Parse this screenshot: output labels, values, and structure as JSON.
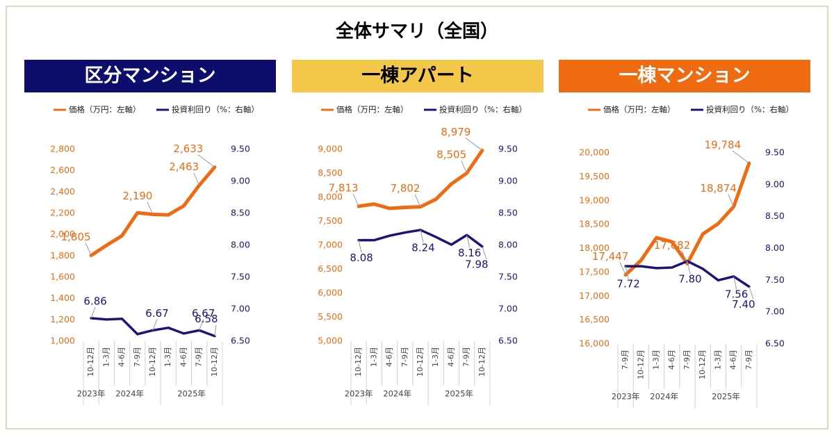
{
  "title": "全体サマリ（全国）",
  "chart_data": [
    {
      "type": "line",
      "title": "区分マンション",
      "title_bg": "#0d0d6b",
      "title_color": "#ffffff",
      "categories": [
        "10-12月",
        "1-3月",
        "4-6月",
        "7-9月",
        "10-12月",
        "1-3月",
        "4-6月",
        "7-9月",
        "10-12月"
      ],
      "year_labels": [
        "2023年",
        "2024年",
        null,
        null,
        null,
        "2025年",
        null,
        null,
        null
      ],
      "ylim": [
        1000,
        2800
      ],
      "yticks": [
        {
          "value": 1000,
          "label": "1,000"
        },
        {
          "value": 1200,
          "label": "1,200"
        },
        {
          "value": 1400,
          "label": "1,400"
        },
        {
          "value": 1600,
          "label": "1,600"
        },
        {
          "value": 1800,
          "label": "1,800"
        },
        {
          "value": 2000,
          "label": "2,000"
        },
        {
          "value": 2200,
          "label": "2,200"
        },
        {
          "value": 2400,
          "label": "2,400"
        },
        {
          "value": 2600,
          "label": "2,600"
        },
        {
          "value": 2800,
          "label": "2,800"
        }
      ],
      "y2lim": [
        6.5,
        9.5
      ],
      "y2ticks": [
        {
          "value": 6.5,
          "label": "6.50"
        },
        {
          "value": 7,
          "label": "7.00"
        },
        {
          "value": 7.5,
          "label": "7.50"
        },
        {
          "value": 8,
          "label": "8.00"
        },
        {
          "value": 8.5,
          "label": "8.50"
        },
        {
          "value": 9,
          "label": "9.00"
        },
        {
          "value": 9.5,
          "label": "9.50"
        }
      ],
      "series": [
        {
          "name": "価格（万円：左軸）",
          "color": "#ee6b12",
          "values": [
            1805,
            1900,
            1990,
            2205,
            2190,
            2185,
            2270,
            2463,
            2633
          ],
          "value_labels": [
            "1,805",
            null,
            null,
            null,
            "2,190",
            null,
            null,
            "2,463",
            "2,633"
          ]
        },
        {
          "name": "投資利回り（%：右軸）",
          "color": "#1c1478",
          "axis": "y2",
          "values": [
            6.86,
            6.84,
            6.85,
            6.61,
            6.67,
            6.71,
            6.62,
            6.67,
            6.58
          ],
          "value_labels": [
            "6.86",
            null,
            null,
            null,
            "6.67",
            null,
            null,
            "6.67",
            "6.58"
          ]
        }
      ]
    },
    {
      "type": "line",
      "title": "一棟アパート",
      "title_bg": "#f4c84a",
      "title_color": "#000000",
      "categories": [
        "10-12月",
        "1-3月",
        "4-6月",
        "7-9月",
        "10-12月",
        "1-3月",
        "4-6月",
        "7-9月",
        "10-12月"
      ],
      "year_labels": [
        "2023年",
        "2024年",
        null,
        null,
        null,
        "2025年",
        null,
        null,
        null
      ],
      "ylim": [
        5000,
        9000
      ],
      "yticks": [
        {
          "value": 5000,
          "label": "5,000"
        },
        {
          "value": 5500,
          "label": "5,500"
        },
        {
          "value": 6000,
          "label": "6,000"
        },
        {
          "value": 6500,
          "label": "6,500"
        },
        {
          "value": 7000,
          "label": "7,000"
        },
        {
          "value": 7500,
          "label": "7,500"
        },
        {
          "value": 8000,
          "label": "8,000"
        },
        {
          "value": 8500,
          "label": "8,500"
        },
        {
          "value": 9000,
          "label": "9,000"
        }
      ],
      "y2lim": [
        6.5,
        9.5
      ],
      "y2ticks": [
        {
          "value": 6.5,
          "label": "6.50"
        },
        {
          "value": 7,
          "label": "7.00"
        },
        {
          "value": 7.5,
          "label": "7.50"
        },
        {
          "value": 8,
          "label": "8.00"
        },
        {
          "value": 8.5,
          "label": "8.50"
        },
        {
          "value": 9,
          "label": "9.00"
        },
        {
          "value": 9.5,
          "label": "9.50"
        }
      ],
      "series": [
        {
          "name": "価格（万円：左軸）",
          "color": "#ee6b12",
          "values": [
            7813,
            7860,
            7770,
            7790,
            7802,
            7960,
            8280,
            8505,
            8979
          ],
          "value_labels": [
            "7,813",
            null,
            null,
            null,
            "7,802",
            null,
            null,
            "8,505",
            "8,979"
          ]
        },
        {
          "name": "投資利回り（%：右軸）",
          "color": "#1c1478",
          "axis": "y2",
          "values": [
            8.08,
            8.08,
            8.15,
            8.2,
            8.24,
            8.13,
            8.01,
            8.16,
            7.98
          ],
          "value_labels": [
            "8.08",
            null,
            null,
            null,
            "8.24",
            null,
            null,
            "8.16",
            "7.98"
          ]
        }
      ]
    },
    {
      "type": "line",
      "title": "一棟マンション",
      "title_bg": "#ee6b12",
      "title_color": "#ffffff",
      "categories": [
        "7-9月",
        "10-12月",
        "1-3月",
        "4-6月",
        "7-9月",
        "10-12月",
        "1-3月",
        "4-6月",
        "7-9月"
      ],
      "year_labels": [
        "2023年",
        "2024年",
        null,
        null,
        null,
        "2025年",
        null,
        null,
        null
      ],
      "ylim": [
        16000,
        20000
      ],
      "yticks": [
        {
          "value": 16000,
          "label": "16,000"
        },
        {
          "value": 16500,
          "label": "16,500"
        },
        {
          "value": 17000,
          "label": "17,000"
        },
        {
          "value": 17500,
          "label": "17,500"
        },
        {
          "value": 18000,
          "label": "18,000"
        },
        {
          "value": 18500,
          "label": "18,500"
        },
        {
          "value": 19000,
          "label": "19,000"
        },
        {
          "value": 19500,
          "label": "19,500"
        },
        {
          "value": 20000,
          "label": "20,000"
        }
      ],
      "y2lim": [
        6.5,
        9.5
      ],
      "y2ticks": [
        {
          "value": 6.5,
          "label": "6.50"
        },
        {
          "value": 7,
          "label": "7.00"
        },
        {
          "value": 7.5,
          "label": "7.50"
        },
        {
          "value": 8,
          "label": "8.00"
        },
        {
          "value": 8.5,
          "label": "8.50"
        },
        {
          "value": 9,
          "label": "9.00"
        },
        {
          "value": 9.5,
          "label": "9.50"
        }
      ],
      "series": [
        {
          "name": "価格（万円：左軸）",
          "color": "#ee6b12",
          "values": [
            17447,
            17750,
            18225,
            18140,
            17682,
            18300,
            18520,
            18874,
            19784
          ],
          "value_labels": [
            "17,447",
            null,
            null,
            null,
            "17,682",
            null,
            null,
            "18,874",
            "19,784"
          ]
        },
        {
          "name": "投資利回り（%：右軸）",
          "color": "#1c1478",
          "axis": "y2",
          "values": [
            7.72,
            7.72,
            7.69,
            7.7,
            7.8,
            7.68,
            7.5,
            7.56,
            7.4
          ],
          "value_labels": [
            "7.72",
            null,
            null,
            null,
            "7.80",
            null,
            null,
            "7.56",
            "7.40"
          ]
        }
      ]
    }
  ]
}
